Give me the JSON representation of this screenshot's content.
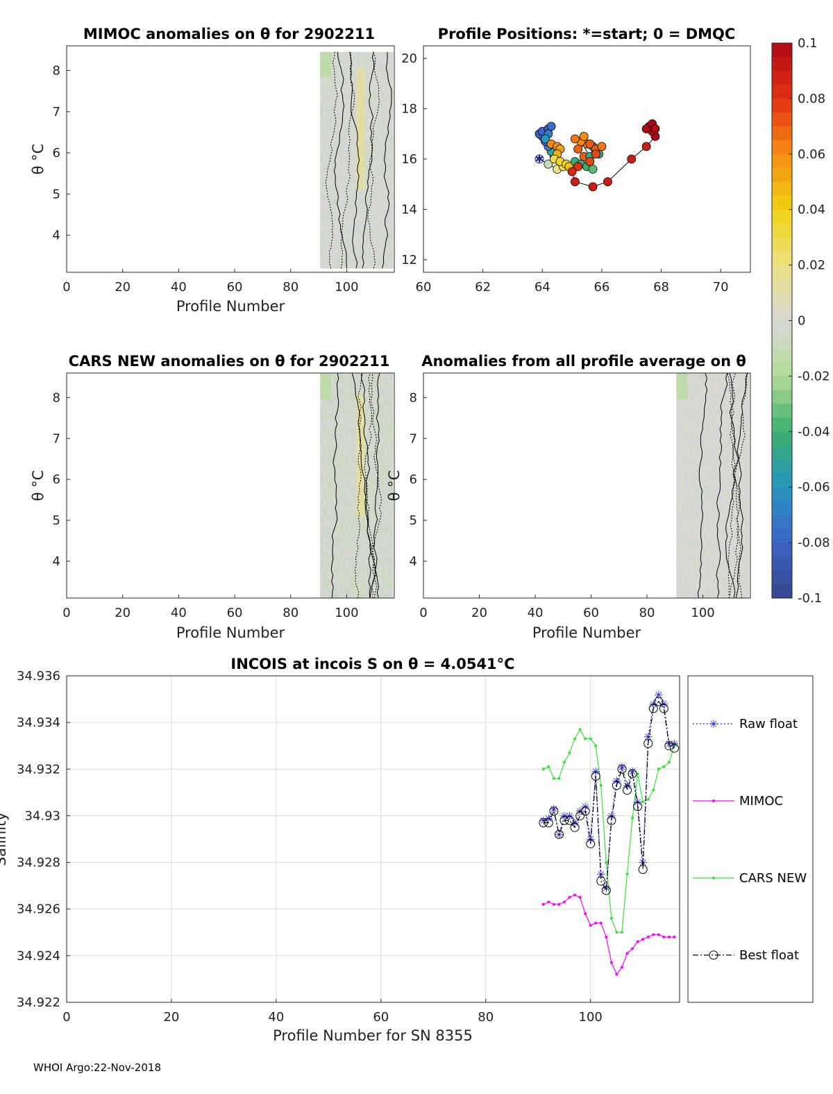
{
  "footer": "WHOI Argo:22-Nov-2018",
  "panels": {
    "mimoc": {
      "title": "MIMOC anomalies on θ  for 2902211",
      "xlabel": "Profile Number",
      "ylabel": "θ °C",
      "xticks": [
        "0",
        "20",
        "40",
        "60",
        "80",
        "100"
      ],
      "yticks": [
        "4",
        "5",
        "6",
        "7",
        "8"
      ]
    },
    "positions": {
      "title": "Profile Positions: *=start; 0 = DMQC",
      "xticks": [
        "60",
        "62",
        "64",
        "66",
        "68",
        "70"
      ],
      "yticks": [
        "12",
        "14",
        "16",
        "18",
        "20"
      ]
    },
    "cars": {
      "title": "CARS NEW anomalies on θ for 2902211",
      "xlabel": "Profile Number",
      "ylabel": "θ °C",
      "xticks": [
        "0",
        "20",
        "40",
        "60",
        "80",
        "100"
      ],
      "yticks": [
        "4",
        "5",
        "6",
        "7",
        "8"
      ]
    },
    "allavg": {
      "title": "Anomalies from all profile average on θ",
      "xlabel": "Profile Number",
      "ylabel": "θ °C",
      "xticks": [
        "0",
        "20",
        "40",
        "60",
        "80",
        "100"
      ],
      "yticks": [
        "4",
        "5",
        "6",
        "7",
        "8"
      ]
    },
    "colorbar": {
      "ticks": [
        "0.1",
        "0.08",
        "0.06",
        "0.04",
        "0.02",
        "0",
        "-0.02",
        "-0.04",
        "-0.06",
        "-0.08",
        "-0.1"
      ]
    },
    "salinity": {
      "title": "INCOIS at incois S on θ = 4.0541°C",
      "xlabel": "Profile Number for SN 8355",
      "ylabel": "Salinity",
      "xticks": [
        "0",
        "20",
        "40",
        "60",
        "80",
        "100"
      ],
      "yticks": [
        "34.936",
        "34.934",
        "34.932",
        "34.93",
        "34.928",
        "34.926",
        "34.924",
        "34.922"
      ],
      "legend": [
        "Raw float",
        "MIMOC",
        "CARS NEW",
        "Best float"
      ]
    }
  },
  "chart_data": [
    {
      "type": "heatmap",
      "id": "mimoc",
      "title": "MIMOC anomalies on θ  for 2902211",
      "xlabel": "Profile Number",
      "ylabel": "θ °C",
      "xlim": [
        0,
        117
      ],
      "ylim": [
        3.1,
        8.6
      ],
      "profile_range": [
        91,
        116
      ],
      "theta_range": [
        3.2,
        8.45
      ],
      "mean_anomaly": -0.002,
      "max_anomaly": 0.012,
      "min_anomaly": -0.015
    },
    {
      "type": "scatter",
      "id": "positions",
      "title": "Profile Positions: *=start; 0 = DMQC",
      "xlim": [
        60,
        71
      ],
      "ylim": [
        11.5,
        20.5
      ],
      "lon": [
        63.9,
        64.2,
        64.5,
        64.7,
        64.6,
        64.4,
        64.3,
        64.2,
        64.1,
        64.0,
        63.9,
        64.0,
        64.2,
        64.3,
        64.2,
        64.1,
        64.3,
        64.5,
        64.6,
        64.5,
        64.4,
        64.6,
        64.8,
        64.9,
        65.1,
        65.3,
        65.5,
        65.7,
        65.6,
        65.4,
        65.2,
        65.5,
        65.7,
        65.8,
        65.9,
        65.6,
        65.3,
        65.1,
        65.4,
        65.6,
        65.8,
        66.0,
        65.8,
        65.6,
        65.2,
        65.0,
        65.1,
        65.7,
        66.2,
        67.0,
        67.5,
        67.8,
        67.7,
        67.6,
        67.5,
        67.7,
        67.8
      ],
      "lat": [
        16.0,
        15.8,
        15.6,
        15.7,
        15.9,
        16.1,
        16.3,
        16.5,
        16.7,
        16.9,
        17.0,
        17.1,
        17.2,
        17.3,
        17.0,
        16.8,
        16.6,
        16.5,
        16.4,
        16.2,
        16.0,
        15.9,
        15.8,
        15.7,
        15.9,
        15.8,
        15.7,
        15.6,
        15.9,
        16.1,
        16.4,
        16.6,
        16.5,
        16.3,
        16.2,
        16.1,
        16.7,
        16.8,
        16.9,
        16.6,
        16.4,
        16.5,
        16.2,
        15.9,
        15.7,
        15.5,
        15.1,
        14.9,
        15.1,
        16.0,
        16.5,
        16.9,
        17.1,
        17.3,
        17.2,
        17.4,
        17.2
      ],
      "anomaly": [
        0.0,
        -0.01,
        0.02,
        0.03,
        0.025,
        -0.03,
        -0.05,
        -0.07,
        -0.08,
        -0.085,
        -0.085,
        -0.08,
        -0.08,
        -0.075,
        -0.07,
        -0.06,
        0.06,
        0.06,
        0.055,
        0.05,
        0.03,
        0.035,
        0.04,
        0.045,
        -0.04,
        -0.045,
        -0.04,
        -0.035,
        -0.04,
        0.07,
        0.07,
        0.065,
        -0.06,
        -0.055,
        -0.05,
        -0.045,
        0.06,
        0.065,
        0.06,
        0.07,
        0.07,
        0.065,
        0.075,
        0.075,
        0.08,
        0.085,
        0.09,
        0.09,
        0.09,
        0.09,
        0.09,
        0.1,
        0.1,
        0.1,
        0.1,
        0.1,
        0.1
      ]
    },
    {
      "type": "heatmap",
      "id": "cars",
      "title": "CARS NEW anomalies on θ for 2902211",
      "xlabel": "Profile Number",
      "ylabel": "θ °C",
      "xlim": [
        0,
        117
      ],
      "ylim": [
        3.1,
        8.6
      ],
      "profile_range": [
        91,
        116
      ],
      "theta_range": [
        3.1,
        8.6
      ],
      "mean_anomaly": -0.004,
      "max_anomaly": 0.015,
      "min_anomaly": -0.02
    },
    {
      "type": "heatmap",
      "id": "allavg",
      "title": "Anomalies from all profile average on θ",
      "xlabel": "Profile Number",
      "ylabel": "θ °C",
      "xlim": [
        0,
        117
      ],
      "ylim": [
        3.1,
        8.6
      ],
      "profile_range": [
        91,
        116
      ],
      "theta_range": [
        3.1,
        8.6
      ],
      "mean_anomaly": 0.0,
      "max_anomaly": 0.008,
      "min_anomaly": -0.012
    },
    {
      "type": "line",
      "id": "salinity",
      "title": "INCOIS at incois S on θ = 4.0541°C",
      "xlabel": "Profile Number for SN 8355",
      "ylabel": "Salinity",
      "xlim": [
        0,
        117
      ],
      "ylim": [
        34.922,
        34.936
      ],
      "grid": true,
      "legend_position": "outside-right",
      "x": [
        91,
        92,
        93,
        94,
        95,
        96,
        97,
        98,
        99,
        100,
        101,
        102,
        103,
        104,
        105,
        106,
        107,
        108,
        109,
        110,
        111,
        112,
        113,
        114,
        115,
        116
      ],
      "series": [
        {
          "name": "Raw float",
          "values": [
            34.9298,
            34.9299,
            34.9303,
            34.9292,
            34.93,
            34.93,
            34.9297,
            34.9302,
            34.9304,
            34.929,
            34.9319,
            34.9275,
            34.9269,
            34.93,
            34.9315,
            34.9321,
            34.9313,
            34.9319,
            34.9306,
            34.928,
            34.9334,
            34.9348,
            34.9352,
            34.9348,
            34.9331,
            34.9331
          ]
        },
        {
          "name": "MIMOC",
          "values": [
            34.9262,
            34.9263,
            34.9262,
            34.9262,
            34.9263,
            34.9265,
            34.9266,
            34.9265,
            34.9258,
            34.9253,
            34.9254,
            34.9254,
            34.9248,
            34.9237,
            34.9232,
            34.9235,
            34.9241,
            34.9243,
            34.9246,
            34.9247,
            34.9248,
            34.9249,
            34.9249,
            34.9248,
            34.9248,
            34.9248
          ]
        },
        {
          "name": "CARS NEW",
          "values": [
            34.932,
            34.9321,
            34.9316,
            34.9316,
            34.9323,
            34.9327,
            34.9333,
            34.9337,
            34.9333,
            34.9333,
            34.933,
            34.9313,
            34.928,
            34.9256,
            34.925,
            34.925,
            34.9275,
            34.9299,
            34.9318,
            34.9306,
            34.9307,
            34.9311,
            34.932,
            34.9321,
            34.9323,
            34.933
          ]
        },
        {
          "name": "Best float",
          "values": [
            34.9297,
            34.9297,
            34.9302,
            34.9292,
            34.9298,
            34.9298,
            34.9295,
            34.93,
            34.9302,
            34.9288,
            34.9317,
            34.9272,
            34.9268,
            34.9298,
            34.9313,
            34.932,
            34.9311,
            34.9318,
            34.9304,
            34.9277,
            34.9331,
            34.9346,
            34.9349,
            34.9346,
            34.933,
            34.9329
          ]
        }
      ]
    }
  ]
}
